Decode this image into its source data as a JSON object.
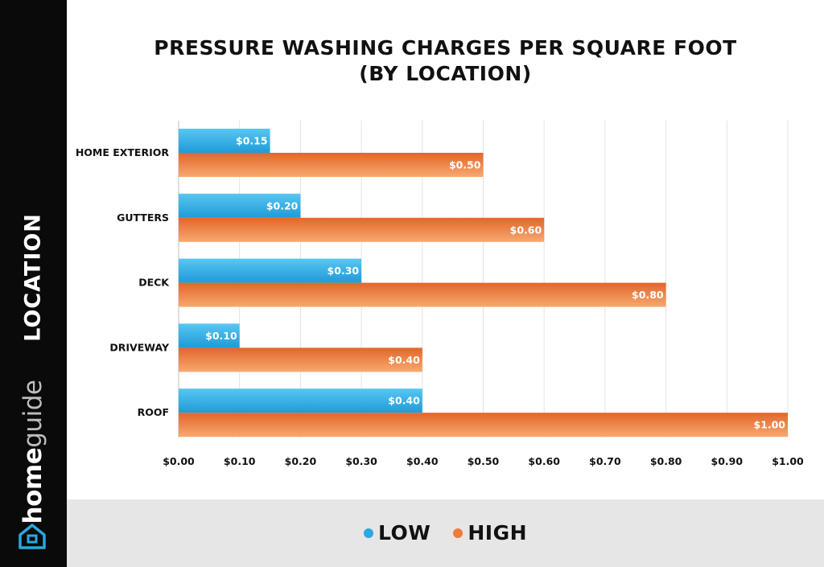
{
  "chart_data": {
    "type": "bar",
    "orientation": "horizontal",
    "title_line1": "PRESSURE WASHING CHARGES PER SQUARE FOOT",
    "title_line2": "(BY LOCATION)",
    "ylabel": "LOCATION",
    "xlabel": "",
    "categories": [
      "HOME EXTERIOR",
      "GUTTERS",
      "DECK",
      "DRIVEWAY",
      "ROOF"
    ],
    "series": [
      {
        "name": "LOW",
        "color": "#2aa8e0",
        "values": [
          0.15,
          0.2,
          0.3,
          0.1,
          0.4
        ],
        "labels": [
          "$0.15",
          "$0.20",
          "$0.30",
          "$0.10",
          "$0.40"
        ]
      },
      {
        "name": "HIGH",
        "color": "#ee7b3a",
        "values": [
          0.5,
          0.6,
          0.8,
          0.4,
          1.0
        ],
        "labels": [
          "$0.50",
          "$0.60",
          "$0.80",
          "$0.40",
          "$1.00"
        ]
      }
    ],
    "xlim": [
      0,
      1.0
    ],
    "xticks": [
      0,
      0.1,
      0.2,
      0.3,
      0.4,
      0.5,
      0.6,
      0.7,
      0.8,
      0.9,
      1.0
    ],
    "xtick_labels": [
      "$0.00",
      "$0.10",
      "$0.20",
      "$0.30",
      "$0.40",
      "$0.50",
      "$0.60",
      "$0.70",
      "$0.80",
      "$0.90",
      "$1.00"
    ],
    "grid": true,
    "legend_position": "bottom-center"
  },
  "brand": {
    "bold": "home",
    "light": "guide",
    "icon": "house-icon"
  },
  "colors": {
    "low": "#2aa8e0",
    "high": "#ee7b3a",
    "sidebar": "#0a0a0a",
    "footer": "#e6e6e6"
  }
}
